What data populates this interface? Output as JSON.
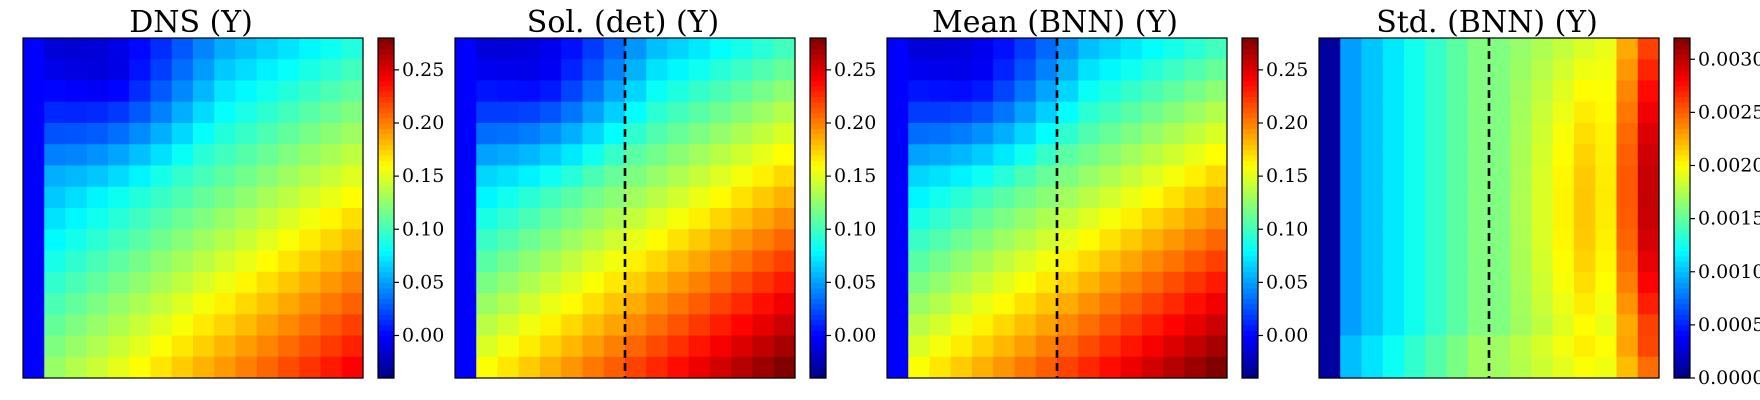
{
  "chart_data": [
    {
      "type": "heatmap",
      "title": "DNS (Y)",
      "grid": false,
      "colormap": "jet",
      "colorbar": {
        "vmin": -0.04,
        "vmax": 0.28,
        "ticks": [
          0.0,
          0.05,
          0.1,
          0.15,
          0.2,
          0.25
        ],
        "tick_labels": [
          "0.00",
          "0.05",
          "0.10",
          "0.15",
          "0.20",
          "0.25"
        ]
      },
      "rows": 16,
      "cols": 16,
      "field": {
        "min": 0.0,
        "corner_tr": 0.09,
        "corner_bl": 0.12,
        "corner_br": 0.24,
        "left_column": 0.0,
        "lowest": -0.02
      },
      "divider_col": null
    },
    {
      "type": "heatmap",
      "title": "Sol. (det) (Y)",
      "grid": false,
      "colormap": "jet",
      "colorbar": {
        "vmin": -0.04,
        "vmax": 0.28,
        "ticks": [
          0.0,
          0.05,
          0.1,
          0.15,
          0.2,
          0.25
        ],
        "tick_labels": [
          "0.00",
          "0.05",
          "0.10",
          "0.15",
          "0.20",
          "0.25"
        ]
      },
      "rows": 16,
      "cols": 16,
      "field": {
        "min": 0.0,
        "corner_tr": 0.1,
        "corner_bl": 0.15,
        "corner_br": 0.28,
        "left_column": 0.0,
        "lowest": -0.02
      },
      "divider_col": 7.5
    },
    {
      "type": "heatmap",
      "title": "Mean (BNN) (Y)",
      "grid": false,
      "colormap": "jet",
      "colorbar": {
        "vmin": -0.04,
        "vmax": 0.28,
        "ticks": [
          0.0,
          0.05,
          0.1,
          0.15,
          0.2,
          0.25
        ],
        "tick_labels": [
          "0.00",
          "0.05",
          "0.10",
          "0.15",
          "0.20",
          "0.25"
        ]
      },
      "rows": 16,
      "cols": 16,
      "field": {
        "min": 0.0,
        "corner_tr": 0.1,
        "corner_bl": 0.15,
        "corner_br": 0.28,
        "left_column": 0.0,
        "lowest": -0.02
      },
      "divider_col": 7.5
    },
    {
      "type": "heatmap",
      "title": "Std. (BNN) (Y)",
      "grid": false,
      "colormap": "jet",
      "colorbar": {
        "vmin": 0.0,
        "vmax": 0.0032,
        "ticks": [
          0.0,
          0.0005,
          0.001,
          0.0015,
          0.002,
          0.0025,
          0.003
        ],
        "tick_labels": [
          "0.0000",
          "0.0005",
          "0.0010",
          "0.0015",
          "0.0020",
          "0.0025",
          "0.0030"
        ]
      },
      "rows": 16,
      "cols": 16,
      "field": {
        "left_column": 0.0001,
        "near_left": 0.0009,
        "middle": 0.0016,
        "right_edge_top": 0.0026,
        "right_edge_mid": 0.0031,
        "right_edge_bottom": 0.0022
      },
      "divider_col": 7.5
    }
  ]
}
